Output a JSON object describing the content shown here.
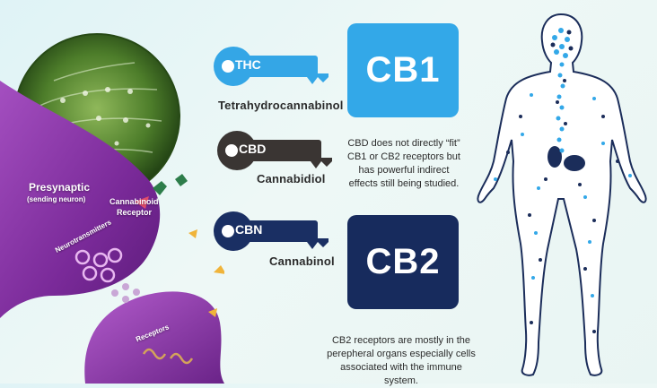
{
  "keys": [
    {
      "id": "thc",
      "label": "THC",
      "name": "Tetrahydrocannabinol",
      "color": "#34a6e6"
    },
    {
      "id": "cbd",
      "label": "CBD",
      "name": "Cannabidiol",
      "color": "#3a3533"
    },
    {
      "id": "cbn",
      "label": "CBN",
      "name": "Cannabinol",
      "color": "#1a2f63"
    }
  ],
  "receptors": [
    {
      "id": "cb1",
      "label": "CB1",
      "color": "#33a8e8"
    },
    {
      "id": "cb2",
      "label": "CB2",
      "color": "#172b5d"
    }
  ],
  "notes": {
    "cbd": [
      "CBD does not directly “fit”",
      "CB1 or CB2 receptors but",
      "has powerful indirect",
      "effects still being studied."
    ],
    "cb2": [
      "CB2 receptors are mostly in the",
      "perepheral organs especially cells",
      "associated with the immune system."
    ]
  },
  "neuron": {
    "presynaptic": "Presynaptic",
    "sending": "(sending neuron)",
    "cannabinoid_receptor": [
      "Cannabinoid",
      "Receptor"
    ],
    "neurotransmitters": "Neurotransmitters",
    "receptors": "Receptors"
  },
  "colors": {
    "light_blue": "#33a8e8",
    "navy": "#172b5d",
    "neuron_purple": "#8a2fa8"
  }
}
